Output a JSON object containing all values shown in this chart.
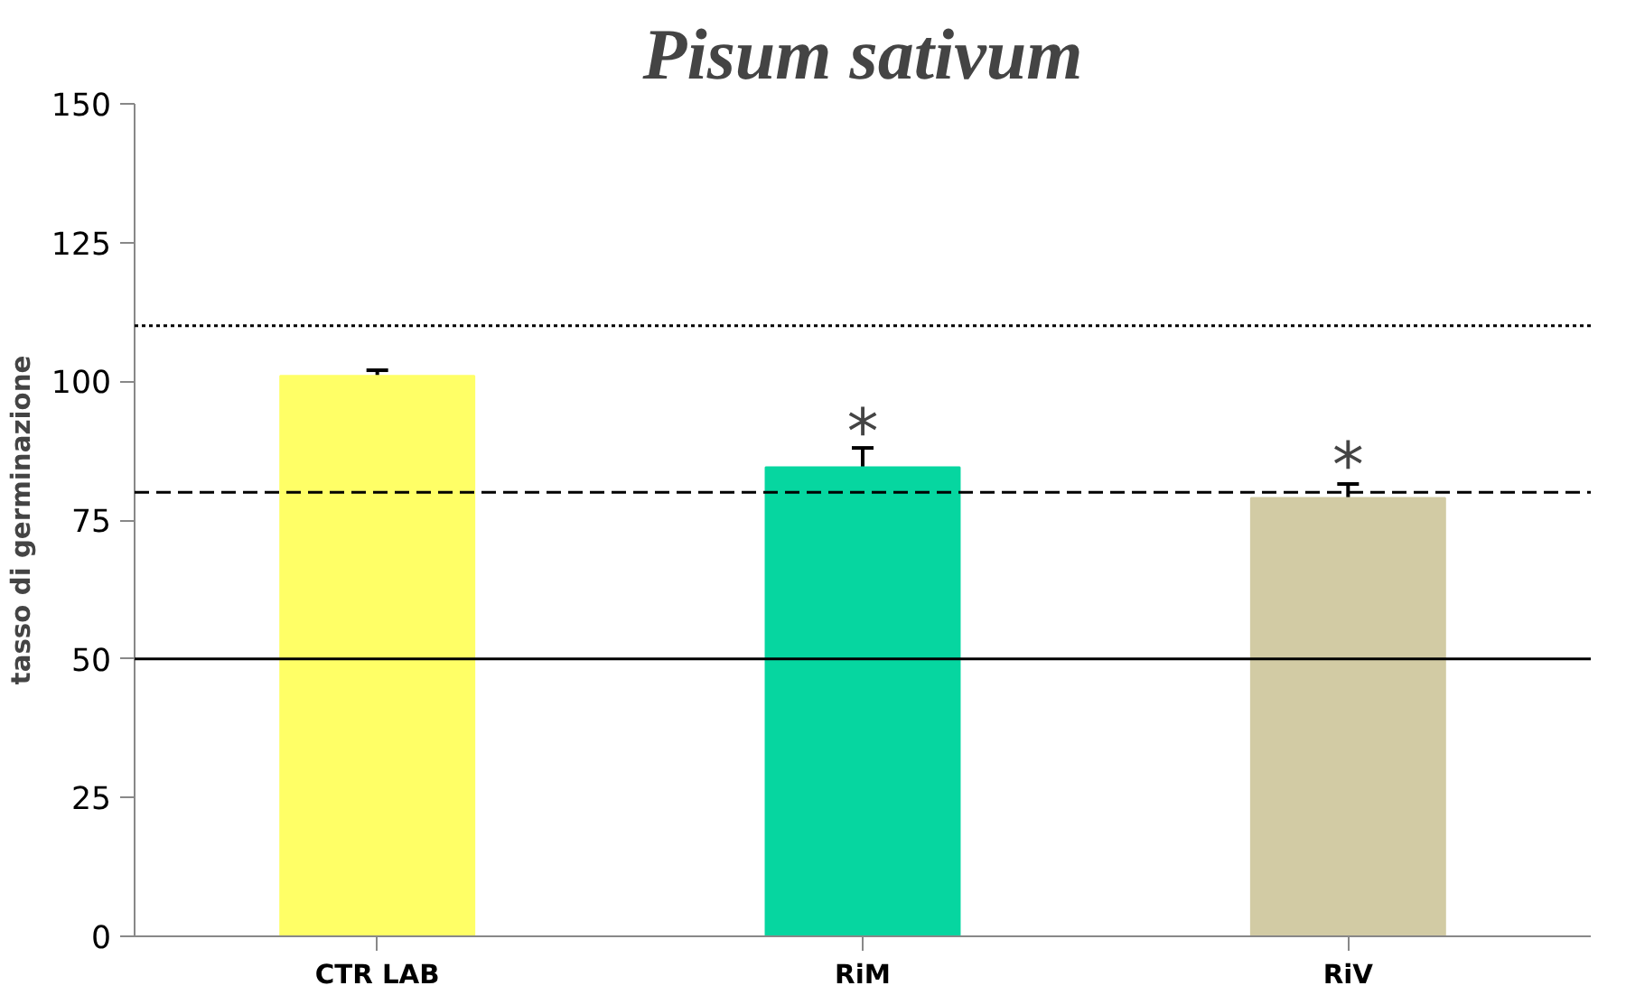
{
  "chart_data": {
    "type": "bar",
    "title": "Pisum sativum",
    "ylabel": "tasso di germinazione",
    "categories": [
      "CTR LAB",
      "RiM",
      "RiV"
    ],
    "values": [
      101,
      84.5,
      79
    ],
    "errors": [
      1,
      3.5,
      2.5
    ],
    "colors": [
      "#ffff66",
      "#06d6a0",
      "#d2cba4"
    ],
    "ylim": [
      0,
      150
    ],
    "yticks": [
      0,
      25,
      50,
      75,
      100,
      125,
      150
    ],
    "grid": false,
    "ref_lines": [
      {
        "axis": "y",
        "value": 110,
        "line_style": "dotted",
        "color": "#000000"
      },
      {
        "axis": "y",
        "value": 80,
        "line_style": "dashed",
        "color": "#000000"
      },
      {
        "axis": "y",
        "value": 50,
        "line_style": "solid",
        "color": "#000000"
      }
    ],
    "annotations": [
      {
        "text": "*",
        "x": "RiM",
        "y": 88
      },
      {
        "text": "*",
        "x": "RiV",
        "y": 82
      }
    ]
  }
}
